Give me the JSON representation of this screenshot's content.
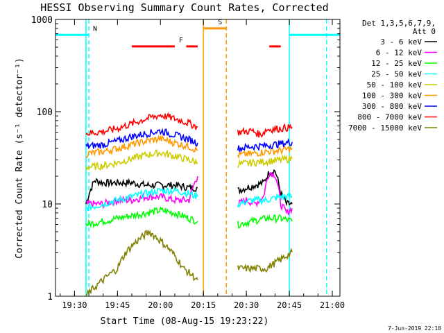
{
  "chart_data": {
    "type": "line",
    "title": "HESSI Observing Summary Count Rates, Corrected",
    "xlabel": "Start Time (08-Aug-15 19:23:22)",
    "ylabel": "Corrected Count Rate (s⁻¹ detector⁻¹)",
    "y_scale": "log",
    "ylim": [
      1,
      1000
    ],
    "xlim": [
      "19:23:22",
      "21:02:40"
    ],
    "x_ticks": [
      "19:30",
      "19:45",
      "20:00",
      "20:15",
      "20:30",
      "20:45",
      "21:00"
    ],
    "y_ticks": [
      "1",
      "10",
      "100",
      "1000"
    ],
    "legend_header": [
      "Det 1,3,5,6,7,9,",
      "Att 0"
    ],
    "legend_position": "right",
    "footer_date": "7-Jun-2019 22:18",
    "series": [
      {
        "name": "3 - 6 keV",
        "color": "#000000",
        "segments": [
          {
            "x": [
              "19:34",
              "19:37",
              "19:40",
              "19:45",
              "19:50",
              "19:55",
              "20:00",
              "20:05",
              "20:10",
              "20:13"
            ],
            "y": [
              10,
              18,
              17,
              17,
              17,
              16,
              16,
              16,
              15,
              15
            ]
          },
          {
            "x": [
              "20:27",
              "20:30",
              "20:33",
              "20:36",
              "20:38",
              "20:40",
              "20:42",
              "20:44",
              "20:46"
            ],
            "y": [
              14,
              15,
              16,
              17,
              22,
              23,
              13,
              10,
              10
            ]
          }
        ]
      },
      {
        "name": "6 - 12 keV",
        "color": "#ff00ff",
        "segments": [
          {
            "x": [
              "19:34",
              "19:40",
              "19:45",
              "19:50",
              "19:55",
              "20:00",
              "20:05",
              "20:10",
              "20:13"
            ],
            "y": [
              10,
              10,
              11,
              11,
              12,
              12,
              11,
              11,
              20
            ]
          },
          {
            "x": [
              "20:27",
              "20:30",
              "20:33",
              "20:36",
              "20:38",
              "20:40",
              "20:42",
              "20:44",
              "20:46"
            ],
            "y": [
              10,
              11,
              10,
              12,
              22,
              21,
              10,
              8,
              9
            ]
          }
        ]
      },
      {
        "name": "12 - 25 keV",
        "color": "#00ff00",
        "segments": [
          {
            "x": [
              "19:34",
              "19:40",
              "19:45",
              "19:50",
              "19:55",
              "20:00",
              "20:05",
              "20:10",
              "20:13"
            ],
            "y": [
              6,
              6.5,
              7,
              7.5,
              8,
              8.5,
              8,
              7,
              6.5
            ]
          },
          {
            "x": [
              "20:27",
              "20:32",
              "20:37",
              "20:42",
              "20:46"
            ],
            "y": [
              6,
              6.5,
              7,
              7,
              6.5
            ]
          }
        ]
      },
      {
        "name": "25 - 50 keV",
        "color": "#00ffff",
        "segments": [
          {
            "x": [
              "19:34",
              "19:40",
              "19:45",
              "19:50",
              "19:55",
              "20:00",
              "20:05",
              "20:10",
              "20:13"
            ],
            "y": [
              9,
              10,
              11,
              12,
              13,
              14,
              14,
              13,
              12
            ]
          },
          {
            "x": [
              "20:27",
              "20:32",
              "20:37",
              "20:42",
              "20:46"
            ],
            "y": [
              10,
              11,
              11,
              12,
              12
            ]
          }
        ]
      },
      {
        "name": "50 - 100 keV",
        "color": "#cccc00",
        "segments": [
          {
            "x": [
              "19:34",
              "19:40",
              "19:45",
              "19:50",
              "19:55",
              "20:00",
              "20:05",
              "20:10",
              "20:13"
            ],
            "y": [
              25,
              26,
              28,
              31,
              34,
              36,
              33,
              30,
              28
            ]
          },
          {
            "x": [
              "20:27",
              "20:32",
              "20:37",
              "20:42",
              "20:46"
            ],
            "y": [
              27,
              28,
              29,
              30,
              31
            ]
          }
        ]
      },
      {
        "name": "100 - 300 keV",
        "color": "#ff9900",
        "segments": [
          {
            "x": [
              "19:34",
              "19:40",
              "19:45",
              "19:50",
              "19:55",
              "20:00",
              "20:05",
              "20:10",
              "20:13"
            ],
            "y": [
              35,
              37,
              40,
              44,
              48,
              51,
              46,
              42,
              38
            ]
          },
          {
            "x": [
              "20:27",
              "20:32",
              "20:37",
              "20:42",
              "20:46"
            ],
            "y": [
              34,
              35,
              37,
              38,
              40
            ]
          }
        ]
      },
      {
        "name": "300 - 800 keV",
        "color": "#0000ff",
        "segments": [
          {
            "x": [
              "19:34",
              "19:40",
              "19:45",
              "19:50",
              "19:55",
              "20:00",
              "20:05",
              "20:10",
              "20:13"
            ],
            "y": [
              42,
              44,
              48,
              54,
              58,
              62,
              56,
              50,
              46
            ]
          },
          {
            "x": [
              "20:27",
              "20:32",
              "20:37",
              "20:42",
              "20:46"
            ],
            "y": [
              40,
              42,
              43,
              45,
              47
            ]
          }
        ]
      },
      {
        "name": "800 - 7000 keV",
        "color": "#ff0000",
        "segments": [
          {
            "x": [
              "19:34",
              "19:40",
              "19:45",
              "19:50",
              "19:55",
              "20:00",
              "20:05",
              "20:10",
              "20:13"
            ],
            "y": [
              58,
              61,
              66,
              74,
              84,
              92,
              84,
              75,
              68
            ]
          },
          {
            "x": [
              "20:27",
              "20:32",
              "20:35",
              "20:37",
              "20:42",
              "20:46"
            ],
            "y": [
              60,
              62,
              56,
              64,
              66,
              68
            ]
          }
        ]
      },
      {
        "name": "7000 - 15000 keV",
        "color": "#808000",
        "segments": [
          {
            "x": [
              "19:34",
              "19:40",
              "19:45",
              "19:48",
              "19:52",
              "19:56",
              "20:00",
              "20:04",
              "20:08",
              "20:13"
            ],
            "y": [
              1,
              1.5,
              2,
              3,
              4,
              5,
              4,
              3,
              2,
              1.5
            ]
          },
          {
            "x": [
              "20:27",
              "20:32",
              "20:37",
              "20:42",
              "20:46"
            ],
            "y": [
              2,
              2,
              2,
              2.5,
              3
            ]
          }
        ]
      }
    ],
    "flags": [
      {
        "label": "N",
        "color": "#00ffff",
        "level": 680,
        "spans": [
          [
            "19:23:22",
            "19:35"
          ],
          [
            "20:45",
            "21:02:40"
          ]
        ]
      },
      {
        "label": "F",
        "color": "#ff0000",
        "level": 510,
        "spans": [
          [
            "19:50",
            "20:05"
          ],
          [
            "20:09",
            "20:13"
          ],
          [
            "20:38",
            "20:42"
          ]
        ]
      },
      {
        "label": "S",
        "color": "#ff9900",
        "level": 800,
        "spans": [
          [
            "20:15",
            "20:23"
          ]
        ]
      }
    ],
    "vlines": [
      {
        "x": "19:35",
        "color": "#00ffff",
        "style": "dashed"
      },
      {
        "x": "19:34",
        "color": "#00ffff",
        "style": "solid"
      },
      {
        "x": "20:15",
        "color": "#ff9900",
        "style": "solid"
      },
      {
        "x": "20:23",
        "color": "#ff9900",
        "style": "dashed"
      },
      {
        "x": "20:45",
        "color": "#00ffff",
        "style": "solid"
      },
      {
        "x": "20:58",
        "color": "#00ffff",
        "style": "dashed"
      }
    ]
  }
}
